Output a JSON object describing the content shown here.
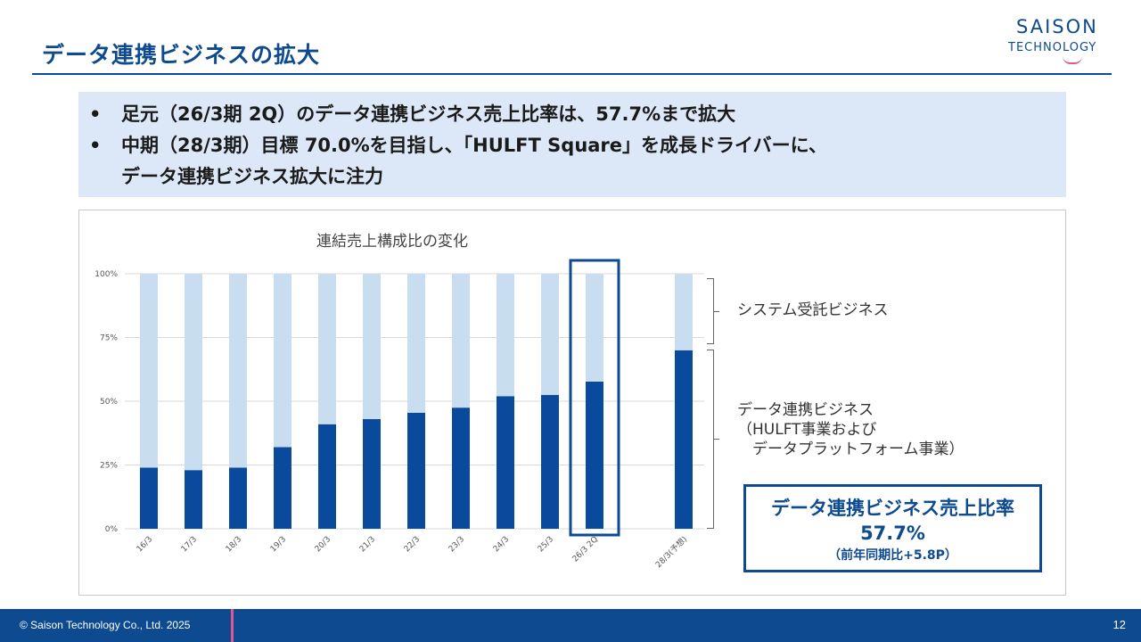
{
  "header": {
    "title": "データ連携ビジネスの拡大",
    "logo_top": "SAISON",
    "logo_bottom": "TECHNOLOGY"
  },
  "summary": {
    "bullet_symbol": "•",
    "line1": "足元（26/3期 2Q）のデータ連携ビジネス売上比率は、57.7%まで拡大",
    "line2": "中期（28/3期）目標 70.0%を目指し、「HULFT Square」を成長ドライバーに、",
    "line3": "データ連携ビジネス拡大に注力"
  },
  "chart_data": {
    "type": "bar",
    "stacked": true,
    "title": "連結売上構成比の変化",
    "categories": [
      "16/3",
      "17/3",
      "18/3",
      "19/3",
      "20/3",
      "21/3",
      "22/3",
      "23/3",
      "24/3",
      "25/3",
      "26/3 2Q",
      "28/3(予想)"
    ],
    "series": [
      {
        "name": "データ連携ビジネス",
        "values": [
          24,
          23,
          24,
          32,
          41,
          43,
          45.5,
          47.5,
          52,
          52.5,
          57.7,
          70
        ],
        "color": "#0a4a9c"
      },
      {
        "name": "システム受託ビジネス",
        "values": [
          76,
          77,
          76,
          68,
          59,
          57,
          54.5,
          52.5,
          48,
          47.5,
          42.3,
          30
        ],
        "color": "#c9ddf1"
      }
    ],
    "yticks": [
      "0%",
      "25%",
      "50%",
      "75%",
      "100%"
    ],
    "ylim": [
      0,
      100
    ],
    "highlight_category": "26/3 2Q",
    "grid": true
  },
  "legend_labels": {
    "upper": "システム受託ビジネス",
    "lower": "データ連携ビジネス\n（HULFT事業および\n　データプラットフォーム事業）"
  },
  "callout": {
    "line1": "データ連携ビジネス売上比率",
    "line2": "57.7%",
    "line3": "（前年同期比+5.8P）"
  },
  "footer": {
    "copyright": "© Saison Technology Co., Ltd. 2025",
    "page_number": "12"
  },
  "colors": {
    "brand_blue": "#0d4a8f",
    "accent_pink": "#e0568f",
    "summary_bg": "#dce8f7"
  }
}
